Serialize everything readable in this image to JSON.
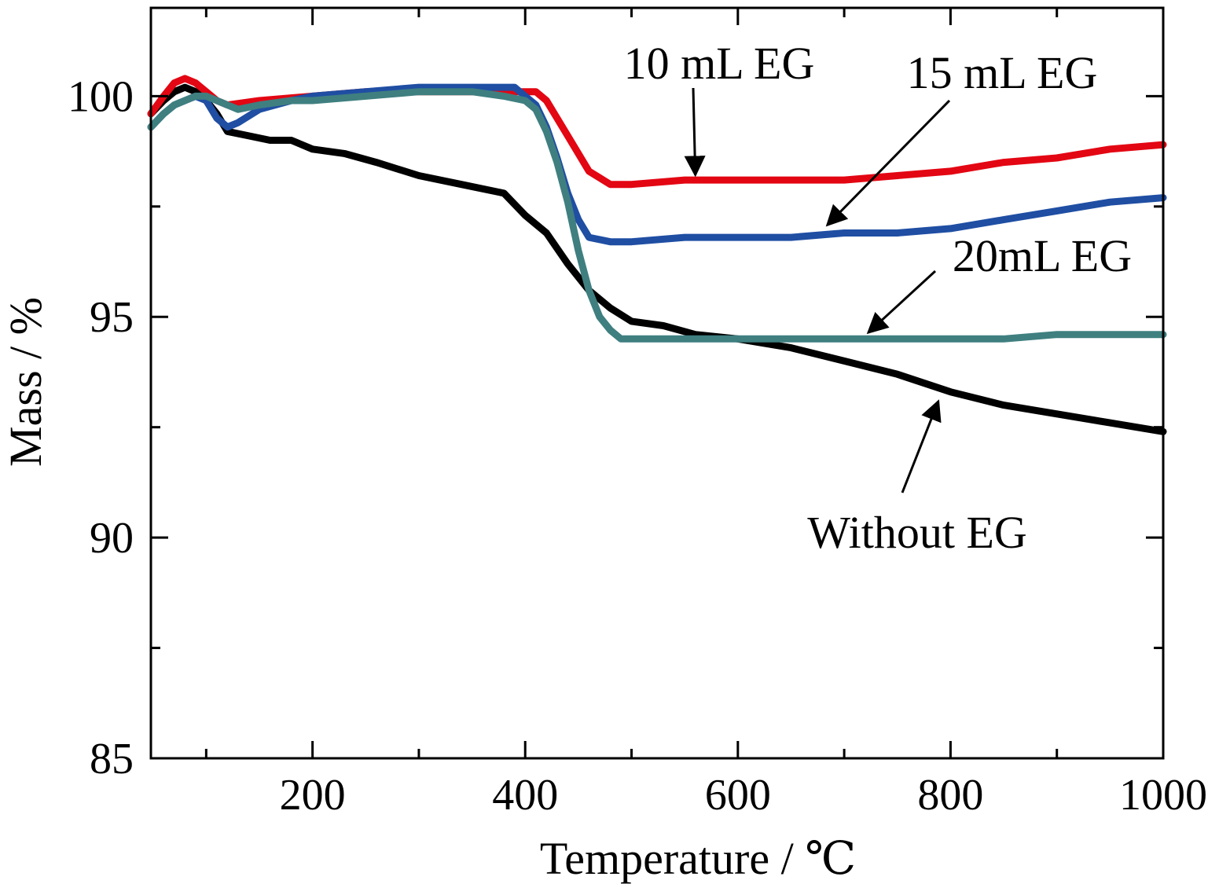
{
  "chart_data": {
    "type": "line",
    "xlabel": "Temperature / ℃",
    "ylabel": "Mass / %",
    "xlim": [
      48,
      1000
    ],
    "ylim": [
      85,
      102
    ],
    "x_major_ticks": [
      200,
      400,
      600,
      800,
      1000
    ],
    "x_minor_ticks": [
      100,
      300,
      500,
      700,
      900
    ],
    "y_major_ticks": [
      85,
      90,
      95,
      100
    ],
    "y_minor_ticks": [
      87.5,
      92.5,
      97.5
    ],
    "grid": false,
    "legend": "none",
    "series": [
      {
        "color": "#000000",
        "x": [
          48,
          60,
          70,
          80,
          90,
          100,
          110,
          120,
          140,
          160,
          180,
          200,
          230,
          260,
          300,
          340,
          380,
          400,
          420,
          440,
          460,
          480,
          500,
          530,
          560,
          600,
          650,
          700,
          750,
          800,
          850,
          900,
          950,
          1000
        ],
        "y": [
          99.6,
          99.9,
          100.1,
          100.2,
          100.1,
          99.9,
          99.6,
          99.2,
          99.1,
          99.0,
          99.0,
          98.8,
          98.7,
          98.5,
          98.2,
          98.0,
          97.8,
          97.3,
          96.9,
          96.2,
          95.6,
          95.2,
          94.9,
          94.8,
          94.6,
          94.5,
          94.3,
          94.0,
          93.7,
          93.3,
          93.0,
          92.8,
          92.6,
          92.4
        ]
      },
      {
        "color": "#e30613",
        "x": [
          48,
          60,
          70,
          80,
          90,
          100,
          110,
          120,
          150,
          200,
          250,
          300,
          350,
          380,
          400,
          410,
          420,
          440,
          460,
          480,
          500,
          550,
          600,
          650,
          700,
          750,
          800,
          850,
          900,
          950,
          1000
        ],
        "y": [
          99.6,
          100.0,
          100.3,
          100.4,
          100.3,
          100.1,
          99.9,
          99.8,
          99.9,
          100.0,
          100.1,
          100.1,
          100.1,
          100.1,
          100.1,
          100.1,
          99.9,
          99.1,
          98.3,
          98.0,
          98.0,
          98.1,
          98.1,
          98.1,
          98.1,
          98.2,
          98.3,
          98.5,
          98.6,
          98.8,
          98.9
        ]
      },
      {
        "color": "#1f4ea3",
        "x": [
          48,
          60,
          70,
          80,
          90,
          100,
          110,
          120,
          130,
          150,
          180,
          200,
          250,
          300,
          350,
          390,
          400,
          410,
          420,
          430,
          440,
          450,
          460,
          480,
          500,
          550,
          600,
          650,
          700,
          750,
          800,
          850,
          900,
          950,
          1000
        ],
        "y": [
          99.3,
          99.6,
          99.8,
          99.9,
          100.0,
          99.9,
          99.5,
          99.3,
          99.4,
          99.7,
          99.9,
          100.0,
          100.1,
          100.2,
          100.2,
          100.2,
          100.0,
          99.8,
          99.3,
          98.6,
          97.8,
          97.2,
          96.8,
          96.7,
          96.7,
          96.8,
          96.8,
          96.8,
          96.9,
          96.9,
          97.0,
          97.2,
          97.4,
          97.6,
          97.7
        ]
      },
      {
        "color": "#3f7f80",
        "x": [
          48,
          60,
          70,
          80,
          90,
          100,
          110,
          120,
          130,
          150,
          180,
          200,
          250,
          300,
          350,
          380,
          400,
          410,
          420,
          430,
          440,
          450,
          460,
          470,
          480,
          490,
          500,
          550,
          600,
          650,
          700,
          750,
          800,
          850,
          900,
          950,
          1000
        ],
        "y": [
          99.3,
          99.6,
          99.8,
          99.9,
          100.0,
          100.0,
          99.9,
          99.8,
          99.7,
          99.8,
          99.9,
          99.9,
          100.0,
          100.1,
          100.1,
          100.0,
          99.9,
          99.7,
          99.2,
          98.5,
          97.6,
          96.5,
          95.6,
          95.0,
          94.7,
          94.5,
          94.5,
          94.5,
          94.5,
          94.5,
          94.5,
          94.5,
          94.5,
          94.5,
          94.6,
          94.6,
          94.6
        ]
      }
    ],
    "annotations": [
      {
        "text": "10 mL EG",
        "target": [
          560,
          98.0
        ]
      },
      {
        "text": "15 mL EG",
        "target": [
          690,
          96.9
        ]
      },
      {
        "text": "20mL EG",
        "target": [
          730,
          94.5
        ]
      },
      {
        "text": "Without EG",
        "target": [
          790,
          93.3
        ]
      }
    ]
  }
}
